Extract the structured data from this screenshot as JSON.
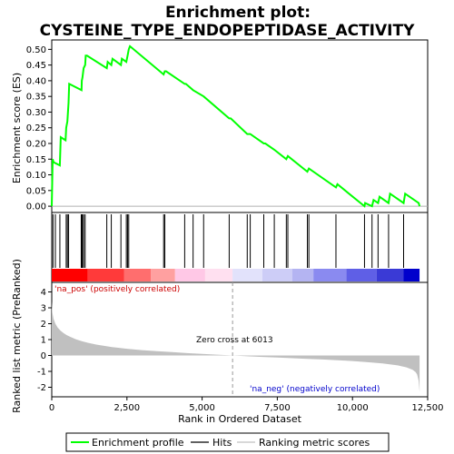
{
  "chart_data": {
    "type": "line",
    "title_lines": [
      "Enrichment plot:",
      "CYSTEINE_TYPE_ENDOPEPTIDASE_ACTIVITY"
    ],
    "xlabel": "Rank in Ordered Dataset",
    "ylabel_top": "Enrichment score (ES)",
    "ylabel_bottom": "Ranked list metric (PreRanked)",
    "xlim": [
      0,
      12500
    ],
    "x_ticks": [
      0,
      2500,
      5000,
      7500,
      10000,
      12500
    ],
    "x_tick_labels": [
      "0",
      "2,500",
      "5,000",
      "7,500",
      "10,000",
      "12,500"
    ],
    "es_ylim": [
      -0.02,
      0.53
    ],
    "es_ticks": [
      0.0,
      0.05,
      0.1,
      0.15,
      0.2,
      0.25,
      0.3,
      0.35,
      0.4,
      0.45,
      0.5
    ],
    "es_tick_labels": [
      "0.00",
      "0.05",
      "0.10",
      "0.15",
      "0.20",
      "0.25",
      "0.30",
      "0.35",
      "0.40",
      "0.45",
      "0.50"
    ],
    "metric_ylim": [
      -2.6,
      4.6
    ],
    "metric_ticks": [
      4,
      3,
      2,
      1,
      0,
      -1,
      -2
    ],
    "metric_tick_labels": [
      "4",
      "3",
      "2",
      "1",
      "0",
      "-1",
      "-2"
    ],
    "grid": false,
    "legend_position": "bottom",
    "series": [
      {
        "name": "Enrichment profile",
        "color": "#00ff00",
        "x": [
          0,
          30,
          60,
          270,
          300,
          460,
          480,
          520,
          560,
          580,
          990,
          1000,
          1020,
          1060,
          1110,
          1130,
          1170,
          1830,
          1860,
          1980,
          2020,
          2300,
          2330,
          2480,
          2520,
          2560,
          2600,
          3720,
          3760,
          3800,
          4420,
          4460,
          4700,
          5050,
          5900,
          5950,
          6500,
          6600,
          7050,
          7100,
          7400,
          7800,
          7850,
          8500,
          8550,
          9450,
          9500,
          10400,
          10420,
          10650,
          10700,
          10850,
          10900,
          11200,
          11250,
          11700,
          11750,
          12200,
          12230
        ],
        "y": [
          0.0,
          0.15,
          0.14,
          0.13,
          0.22,
          0.21,
          0.25,
          0.27,
          0.33,
          0.39,
          0.37,
          0.4,
          0.41,
          0.44,
          0.45,
          0.48,
          0.48,
          0.44,
          0.46,
          0.45,
          0.47,
          0.45,
          0.47,
          0.46,
          0.48,
          0.5,
          0.51,
          0.42,
          0.43,
          0.43,
          0.39,
          0.39,
          0.37,
          0.35,
          0.28,
          0.28,
          0.23,
          0.23,
          0.2,
          0.2,
          0.18,
          0.15,
          0.16,
          0.11,
          0.12,
          0.06,
          0.07,
          0.0,
          0.01,
          0.0,
          0.02,
          0.01,
          0.03,
          0.01,
          0.04,
          0.01,
          0.04,
          0.01,
          0.0
        ]
      }
    ],
    "hits": [
      40,
      120,
      270,
      480,
      520,
      560,
      980,
      1000,
      1020,
      1060,
      1110,
      1830,
      1980,
      2300,
      2480,
      2520,
      2560,
      3720,
      3760,
      4420,
      4700,
      5050,
      5900,
      6500,
      6600,
      7050,
      7400,
      7800,
      7850,
      8500,
      8550,
      9450,
      10400,
      10650,
      10850,
      11200,
      11700
    ],
    "ranked_metric": {
      "name": "Ranking metric scores",
      "color": "#c0c0c0",
      "x": [
        0,
        20,
        60,
        120,
        200,
        300,
        400,
        500,
        600,
        800,
        1000,
        1200,
        1500,
        2000,
        2500,
        3000,
        3500,
        4000,
        4500,
        5000,
        5500,
        6013,
        6500,
        7000,
        7500,
        8000,
        8500,
        9000,
        9500,
        10000,
        10500,
        11000,
        11500,
        11800,
        12000,
        12100,
        12150,
        12200,
        12230
      ],
      "y": [
        3.4,
        2.7,
        2.3,
        2.0,
        1.75,
        1.55,
        1.4,
        1.28,
        1.18,
        1.02,
        0.9,
        0.8,
        0.68,
        0.53,
        0.42,
        0.34,
        0.27,
        0.21,
        0.15,
        0.1,
        0.05,
        0.0,
        -0.05,
        -0.09,
        -0.13,
        -0.17,
        -0.21,
        -0.25,
        -0.3,
        -0.35,
        -0.42,
        -0.5,
        -0.62,
        -0.75,
        -0.9,
        -1.05,
        -1.2,
        -1.6,
        -2.3
      ]
    },
    "color_bar_segments": [
      {
        "from": 0,
        "to": 1200,
        "color": "#ff0000"
      },
      {
        "from": 1200,
        "to": 2400,
        "color": "#ff3a3a"
      },
      {
        "from": 2400,
        "to": 3300,
        "color": "#ff6e6e"
      },
      {
        "from": 3300,
        "to": 4100,
        "color": "#ffa0a0"
      },
      {
        "from": 4100,
        "to": 5100,
        "color": "#ffc8e6"
      },
      {
        "from": 5100,
        "to": 6013,
        "color": "#ffe0f0"
      },
      {
        "from": 6013,
        "to": 7000,
        "color": "#e2e2fb"
      },
      {
        "from": 7000,
        "to": 8000,
        "color": "#cdcdf7"
      },
      {
        "from": 8000,
        "to": 8700,
        "color": "#b4b4f2"
      },
      {
        "from": 8700,
        "to": 9800,
        "color": "#8a8af0"
      },
      {
        "from": 9800,
        "to": 10800,
        "color": "#5f5fe6"
      },
      {
        "from": 10800,
        "to": 11700,
        "color": "#3a3ad6"
      },
      {
        "from": 11700,
        "to": 12230,
        "color": "#0000cc"
      }
    ],
    "annotations": {
      "pos_label": "'na_pos' (positively correlated)",
      "neg_label": "'na_neg' (negatively correlated)",
      "zero_cross": "Zero cross at 6013",
      "zero_cross_x": 6013,
      "pos_color": "#cc0000",
      "neg_color": "#0000cc"
    }
  },
  "legend": {
    "items": [
      {
        "label": "Enrichment profile",
        "color": "#00ff00"
      },
      {
        "label": "Hits",
        "color": "#000000"
      },
      {
        "label": "Ranking metric scores",
        "color": "#c0c0c0"
      }
    ]
  }
}
